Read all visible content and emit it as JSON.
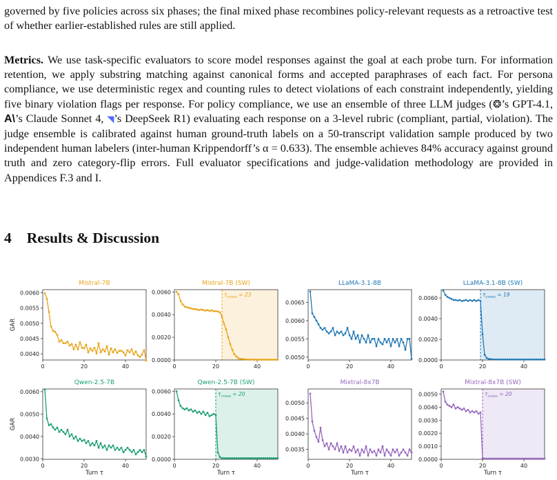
{
  "text": {
    "p_top": "governed by five policies across six phases; the final mixed phase recombines policy-relevant requests as a retroactive test of whether earlier-established rules are still applied.",
    "metrics_title": "Metrics.",
    "metrics_a": "We use task-specific evaluators to score model responses against the goal at each probe turn. For information retention, we apply substring matching against canonical forms and accepted paraphrases of each fact. For persona compliance, we use deterministic regex and counting rules to detect violations of each constraint independently, yielding five binary violation flags per response. For policy compliance, we use an ensemble of three LLM judges (",
    "metrics_b": "’s GPT-4.1,",
    "metrics_c": "’s Claude Sonnet 4,",
    "metrics_d": "’s DeepSeek R1) evaluating each response on a 3-level rubric (compliant, partial, violation). The judge ensemble is calibrated against human ground-truth labels on a 50-transcript validation sample produced by two independent human labelers (inter-human Krippendorff’s α = 0.633). The ensemble achieves 84% accuracy against ground truth and zero category-flip errors. Full evaluator specifications and judge-validation methodology are provided in Appendices F.3 and I.",
    "section_number": "4",
    "section_title": "Results & Discussion"
  },
  "icons": {
    "openai": "openai-logo-icon",
    "anthropic": "anthropic-logo-icon",
    "deepseek": "deepseek-whale-icon"
  },
  "chart_data": [
    {
      "type": "line",
      "title": "Mistral-7B",
      "color": "#E8A317",
      "ylabel": "GAR",
      "xlabel": "",
      "ylim": [
        0.0038,
        0.0061
      ],
      "yticks": [
        "0.0060",
        "0.0055",
        "0.0050",
        "0.0045",
        "0.0040"
      ],
      "ytick_values": [
        0.006,
        0.0055,
        0.005,
        0.0045,
        0.004
      ],
      "xlim": [
        0,
        50
      ],
      "xticks": [
        0,
        20,
        40
      ],
      "x": [
        1,
        2,
        3,
        4,
        5,
        6,
        7,
        8,
        9,
        10,
        11,
        12,
        13,
        14,
        15,
        16,
        17,
        18,
        19,
        20,
        21,
        22,
        23,
        24,
        25,
        26,
        27,
        28,
        29,
        30,
        31,
        32,
        33,
        34,
        35,
        36,
        37,
        38,
        39,
        40,
        41,
        42,
        43,
        44,
        45,
        46,
        47,
        48,
        49,
        50
      ],
      "y": [
        0.00598,
        0.0058,
        0.00537,
        0.0049,
        0.00475,
        0.00472,
        0.00462,
        0.0044,
        0.00445,
        0.00435,
        0.00435,
        0.0044,
        0.00427,
        0.00432,
        0.00415,
        0.0043,
        0.00415,
        0.00438,
        0.0042,
        0.00418,
        0.0043,
        0.00405,
        0.00418,
        0.0041,
        0.0042,
        0.00402,
        0.00435,
        0.00405,
        0.00415,
        0.00408,
        0.00425,
        0.00398,
        0.00418,
        0.00405,
        0.00415,
        0.00403,
        0.0041,
        0.0041,
        0.00405,
        0.00395,
        0.00412,
        0.00405,
        0.00415,
        0.00398,
        0.00408,
        0.00395,
        0.0039,
        0.00398,
        0.00412,
        0.00378
      ]
    },
    {
      "type": "line",
      "title": "Mistral-7B",
      "title_suffix": " (SW)",
      "color": "#E8A317",
      "ylabel": "",
      "xlabel": "",
      "ylim": [
        0.0,
        0.0062
      ],
      "yticks": [
        "0.0060",
        "0.0040",
        "0.0020",
        "0.0000"
      ],
      "ytick_values": [
        0.006,
        0.004,
        0.002,
        0.0
      ],
      "xlim": [
        0,
        50
      ],
      "xticks": [
        0,
        20,
        40
      ],
      "shade_from": 23,
      "annotation": "τ_cross = 23",
      "x": [
        1,
        2,
        3,
        4,
        5,
        6,
        7,
        8,
        9,
        10,
        11,
        12,
        13,
        14,
        15,
        16,
        17,
        18,
        19,
        20,
        21,
        22,
        23,
        24,
        25,
        26,
        27,
        28,
        29,
        30,
        31,
        32,
        33,
        34,
        35,
        36,
        37,
        38,
        39,
        40,
        41,
        42,
        43,
        44,
        45,
        46,
        47,
        48,
        49,
        50
      ],
      "y": [
        0.006,
        0.0058,
        0.0052,
        0.0049,
        0.0047,
        0.00465,
        0.0046,
        0.00455,
        0.0045,
        0.00448,
        0.00445,
        0.0044,
        0.00445,
        0.0044,
        0.00435,
        0.0044,
        0.00432,
        0.00438,
        0.0043,
        0.0043,
        0.00428,
        0.0042,
        0.0038,
        0.0032,
        0.0027,
        0.002,
        0.0014,
        0.0009,
        0.0005,
        0.0003,
        0.00015,
        0.0001,
        8e-05,
        6e-05,
        5e-05,
        4e-05,
        4e-05,
        4e-05,
        3e-05,
        3e-05,
        3e-05,
        3e-05,
        3e-05,
        3e-05,
        3e-05,
        3e-05,
        3e-05,
        3e-05,
        3e-05,
        3e-05
      ]
    },
    {
      "type": "line",
      "title": "LLaMA-3.1-8B",
      "color": "#1F77B4",
      "ylabel": "",
      "xlabel": "",
      "ylim": [
        0.00492,
        0.00685
      ],
      "yticks": [
        "0.0065",
        "0.0060",
        "0.0055",
        "0.0050"
      ],
      "ytick_values": [
        0.0065,
        0.006,
        0.0055,
        0.005
      ],
      "xlim": [
        0,
        50
      ],
      "xticks": [
        0,
        20,
        40
      ],
      "x": [
        1,
        2,
        3,
        4,
        5,
        6,
        7,
        8,
        9,
        10,
        11,
        12,
        13,
        14,
        15,
        16,
        17,
        18,
        19,
        20,
        21,
        22,
        23,
        24,
        25,
        26,
        27,
        28,
        29,
        30,
        31,
        32,
        33,
        34,
        35,
        36,
        37,
        38,
        39,
        40,
        41,
        42,
        43,
        44,
        45,
        46,
        47,
        48,
        49,
        50
      ],
      "y": [
        0.0068,
        0.0062,
        0.0061,
        0.006,
        0.0059,
        0.0058,
        0.00575,
        0.0058,
        0.0057,
        0.00565,
        0.0057,
        0.0058,
        0.0056,
        0.0057,
        0.00565,
        0.0057,
        0.0056,
        0.00565,
        0.0058,
        0.0056,
        0.0055,
        0.0057,
        0.0055,
        0.0056,
        0.0054,
        0.0056,
        0.0055,
        0.0054,
        0.0056,
        0.0054,
        0.0055,
        0.0055,
        0.0053,
        0.0055,
        0.0054,
        0.00535,
        0.0055,
        0.0054,
        0.0055,
        0.0053,
        0.0055,
        0.0054,
        0.0055,
        0.0053,
        0.0055,
        0.0054,
        0.0052,
        0.0055,
        0.0055,
        0.00495
      ]
    },
    {
      "type": "line",
      "title": "LLaMA-3.1-8B",
      "title_suffix": " (SW)",
      "color": "#1F77B4",
      "ylabel": "",
      "xlabel": "",
      "ylim": [
        0.0,
        0.0068
      ],
      "yticks": [
        "0.0060",
        "0.0040",
        "0.0020",
        "0.0000"
      ],
      "ytick_values": [
        0.006,
        0.004,
        0.002,
        0.0
      ],
      "xlim": [
        0,
        50
      ],
      "xticks": [
        0,
        20,
        40
      ],
      "shade_from": 19,
      "annotation": "τ_cross = 19",
      "x": [
        1,
        2,
        3,
        4,
        5,
        6,
        7,
        8,
        9,
        10,
        11,
        12,
        13,
        14,
        15,
        16,
        17,
        18,
        19,
        20,
        21,
        22,
        23,
        24,
        25,
        26,
        27,
        28,
        29,
        30,
        31,
        32,
        33,
        34,
        35,
        36,
        37,
        38,
        39,
        40,
        41,
        42,
        43,
        44,
        45,
        46,
        47,
        48,
        49,
        50
      ],
      "y": [
        0.0067,
        0.0063,
        0.0061,
        0.006,
        0.0059,
        0.0058,
        0.0058,
        0.00575,
        0.0058,
        0.0057,
        0.00575,
        0.0058,
        0.0057,
        0.0058,
        0.0057,
        0.0058,
        0.0057,
        0.0058,
        0.0057,
        0.0025,
        0.0005,
        0.0002,
        0.0001,
        8e-05,
        6e-05,
        5e-05,
        5e-05,
        5e-05,
        5e-05,
        5e-05,
        5e-05,
        5e-05,
        5e-05,
        5e-05,
        5e-05,
        5e-05,
        5e-05,
        5e-05,
        5e-05,
        5e-05,
        5e-05,
        5e-05,
        5e-05,
        5e-05,
        5e-05,
        5e-05,
        5e-05,
        5e-05,
        5e-05,
        5e-05
      ]
    },
    {
      "type": "line",
      "title": "Qwen-2.5-7B",
      "color": "#1A9E74",
      "ylabel": "GAR",
      "xlabel": "Turn τ",
      "ylim": [
        0.00298,
        0.00612
      ],
      "yticks": [
        "0.0060",
        "0.0050",
        "0.0040",
        "0.0030"
      ],
      "ytick_values": [
        0.006,
        0.005,
        0.004,
        0.003
      ],
      "xlim": [
        0,
        50
      ],
      "xticks": [
        0,
        20,
        40
      ],
      "x": [
        1,
        2,
        3,
        4,
        5,
        6,
        7,
        8,
        9,
        10,
        11,
        12,
        13,
        14,
        15,
        16,
        17,
        18,
        19,
        20,
        21,
        22,
        23,
        24,
        25,
        26,
        27,
        28,
        29,
        30,
        31,
        32,
        33,
        34,
        35,
        36,
        37,
        38,
        39,
        40,
        41,
        42,
        43,
        44,
        45,
        46,
        47,
        48,
        49,
        50
      ],
      "y": [
        0.0061,
        0.0048,
        0.0045,
        0.00455,
        0.0044,
        0.0043,
        0.0044,
        0.0042,
        0.0043,
        0.0042,
        0.0041,
        0.0043,
        0.004,
        0.0041,
        0.0039,
        0.004,
        0.0038,
        0.0039,
        0.0038,
        0.00385,
        0.0037,
        0.0038,
        0.0036,
        0.0037,
        0.0036,
        0.0038,
        0.0035,
        0.0037,
        0.0035,
        0.0036,
        0.0034,
        0.0036,
        0.0035,
        0.0036,
        0.0034,
        0.0035,
        0.0034,
        0.0035,
        0.0033,
        0.0034,
        0.0035,
        0.0034,
        0.0033,
        0.0034,
        0.0032,
        0.0033,
        0.0034,
        0.0033,
        0.0034,
        0.0031
      ]
    },
    {
      "type": "line",
      "title": "Qwen-2.5-7B",
      "title_suffix": " (SW)",
      "color": "#1A9E74",
      "ylabel": "",
      "xlabel": "Turn τ",
      "ylim": [
        0.0,
        0.0062
      ],
      "yticks": [
        "0.0060",
        "0.0040",
        "0.0020",
        "0.0000"
      ],
      "ytick_values": [
        0.006,
        0.004,
        0.002,
        0.0
      ],
      "xlim": [
        0,
        50
      ],
      "xticks": [
        0,
        20,
        40
      ],
      "shade_from": 20,
      "annotation": "τ_cross = 20",
      "x": [
        1,
        2,
        3,
        4,
        5,
        6,
        7,
        8,
        9,
        10,
        11,
        12,
        13,
        14,
        15,
        16,
        17,
        18,
        19,
        20,
        21,
        22,
        23,
        24,
        25,
        26,
        27,
        28,
        29,
        30,
        31,
        32,
        33,
        34,
        35,
        36,
        37,
        38,
        39,
        40,
        41,
        42,
        43,
        44,
        45,
        46,
        47,
        48,
        49,
        50
      ],
      "y": [
        0.006,
        0.0052,
        0.0047,
        0.0045,
        0.0044,
        0.0045,
        0.0043,
        0.0044,
        0.0042,
        0.0043,
        0.0041,
        0.0042,
        0.004,
        0.0042,
        0.0039,
        0.0041,
        0.0038,
        0.0039,
        0.004,
        0.0039,
        0.0006,
        0.0002,
        0.0001,
        0.0001,
        0.0001,
        0.0001,
        0.0001,
        0.0001,
        0.0001,
        0.0001,
        0.0001,
        0.0001,
        0.0001,
        0.0001,
        0.0001,
        0.0001,
        0.0001,
        0.0001,
        0.0001,
        0.0001,
        0.0001,
        0.0001,
        0.0001,
        0.0001,
        0.0001,
        0.0001,
        0.0001,
        0.0001,
        0.0001,
        0.0001
      ]
    },
    {
      "type": "line",
      "title": "Mixtral-8x7B",
      "color": "#9467BD",
      "ylabel": "",
      "xlabel": "Turn τ",
      "ylim": [
        0.00318,
        0.00545
      ],
      "yticks": [
        "0.0050",
        "0.0045",
        "0.0040",
        "0.0035"
      ],
      "ytick_values": [
        0.005,
        0.0045,
        0.004,
        0.0035
      ],
      "xlim": [
        0,
        50
      ],
      "xticks": [
        0,
        20,
        40
      ],
      "x": [
        1,
        2,
        3,
        4,
        5,
        6,
        7,
        8,
        9,
        10,
        11,
        12,
        13,
        14,
        15,
        16,
        17,
        18,
        19,
        20,
        21,
        22,
        23,
        24,
        25,
        26,
        27,
        28,
        29,
        30,
        31,
        32,
        33,
        34,
        35,
        36,
        37,
        38,
        39,
        40,
        41,
        42,
        43,
        44,
        45,
        46,
        47,
        48,
        49,
        50
      ],
      "y": [
        0.0053,
        0.0044,
        0.0041,
        0.0039,
        0.00375,
        0.0042,
        0.0038,
        0.0036,
        0.0037,
        0.0035,
        0.0037,
        0.0036,
        0.0035,
        0.0037,
        0.00345,
        0.0036,
        0.0034,
        0.0036,
        0.0034,
        0.0035,
        0.00345,
        0.0036,
        0.0034,
        0.0035,
        0.0033,
        0.0035,
        0.0034,
        0.0036,
        0.0033,
        0.0035,
        0.0034,
        0.00345,
        0.0033,
        0.0035,
        0.0034,
        0.0036,
        0.0033,
        0.0035,
        0.0034,
        0.0033,
        0.0035,
        0.0034,
        0.0035,
        0.0033,
        0.0034,
        0.0035,
        0.0034,
        0.0033,
        0.0035,
        0.0034
      ]
    },
    {
      "type": "line",
      "title": "Mixtral-8x7B",
      "title_suffix": " (SW)",
      "color": "#9467BD",
      "ylabel": "",
      "xlabel": "Turn τ",
      "ylim": [
        0.0,
        0.0054
      ],
      "yticks": [
        "0.0050",
        "0.0040",
        "0.0030",
        "0.0020",
        "0.0010",
        "0.0000"
      ],
      "ytick_values": [
        0.005,
        0.004,
        0.003,
        0.002,
        0.001,
        0.0
      ],
      "xlim": [
        0,
        50
      ],
      "xticks": [
        0,
        20,
        40
      ],
      "shade_from": 20,
      "annotation": "τ_cross = 20",
      "x": [
        1,
        2,
        3,
        4,
        5,
        6,
        7,
        8,
        9,
        10,
        11,
        12,
        13,
        14,
        15,
        16,
        17,
        18,
        19,
        20,
        21,
        22,
        23,
        24,
        25,
        26,
        27,
        28,
        29,
        30,
        31,
        32,
        33,
        34,
        35,
        36,
        37,
        38,
        39,
        40,
        41,
        42,
        43,
        44,
        45,
        46,
        47,
        48,
        49,
        50
      ],
      "y": [
        0.0052,
        0.0044,
        0.0042,
        0.0041,
        0.004,
        0.0042,
        0.0039,
        0.004,
        0.0039,
        0.0038,
        0.0039,
        0.0037,
        0.0038,
        0.0036,
        0.0037,
        0.0036,
        0.0037,
        0.0035,
        0.0036,
        0.0001,
        5e-05,
        5e-05,
        5e-05,
        5e-05,
        5e-05,
        5e-05,
        5e-05,
        5e-05,
        5e-05,
        5e-05,
        5e-05,
        5e-05,
        5e-05,
        5e-05,
        5e-05,
        5e-05,
        5e-05,
        5e-05,
        5e-05,
        5e-05,
        5e-05,
        5e-05,
        5e-05,
        5e-05,
        5e-05,
        5e-05,
        5e-05,
        5e-05,
        5e-05,
        5e-05
      ]
    }
  ]
}
